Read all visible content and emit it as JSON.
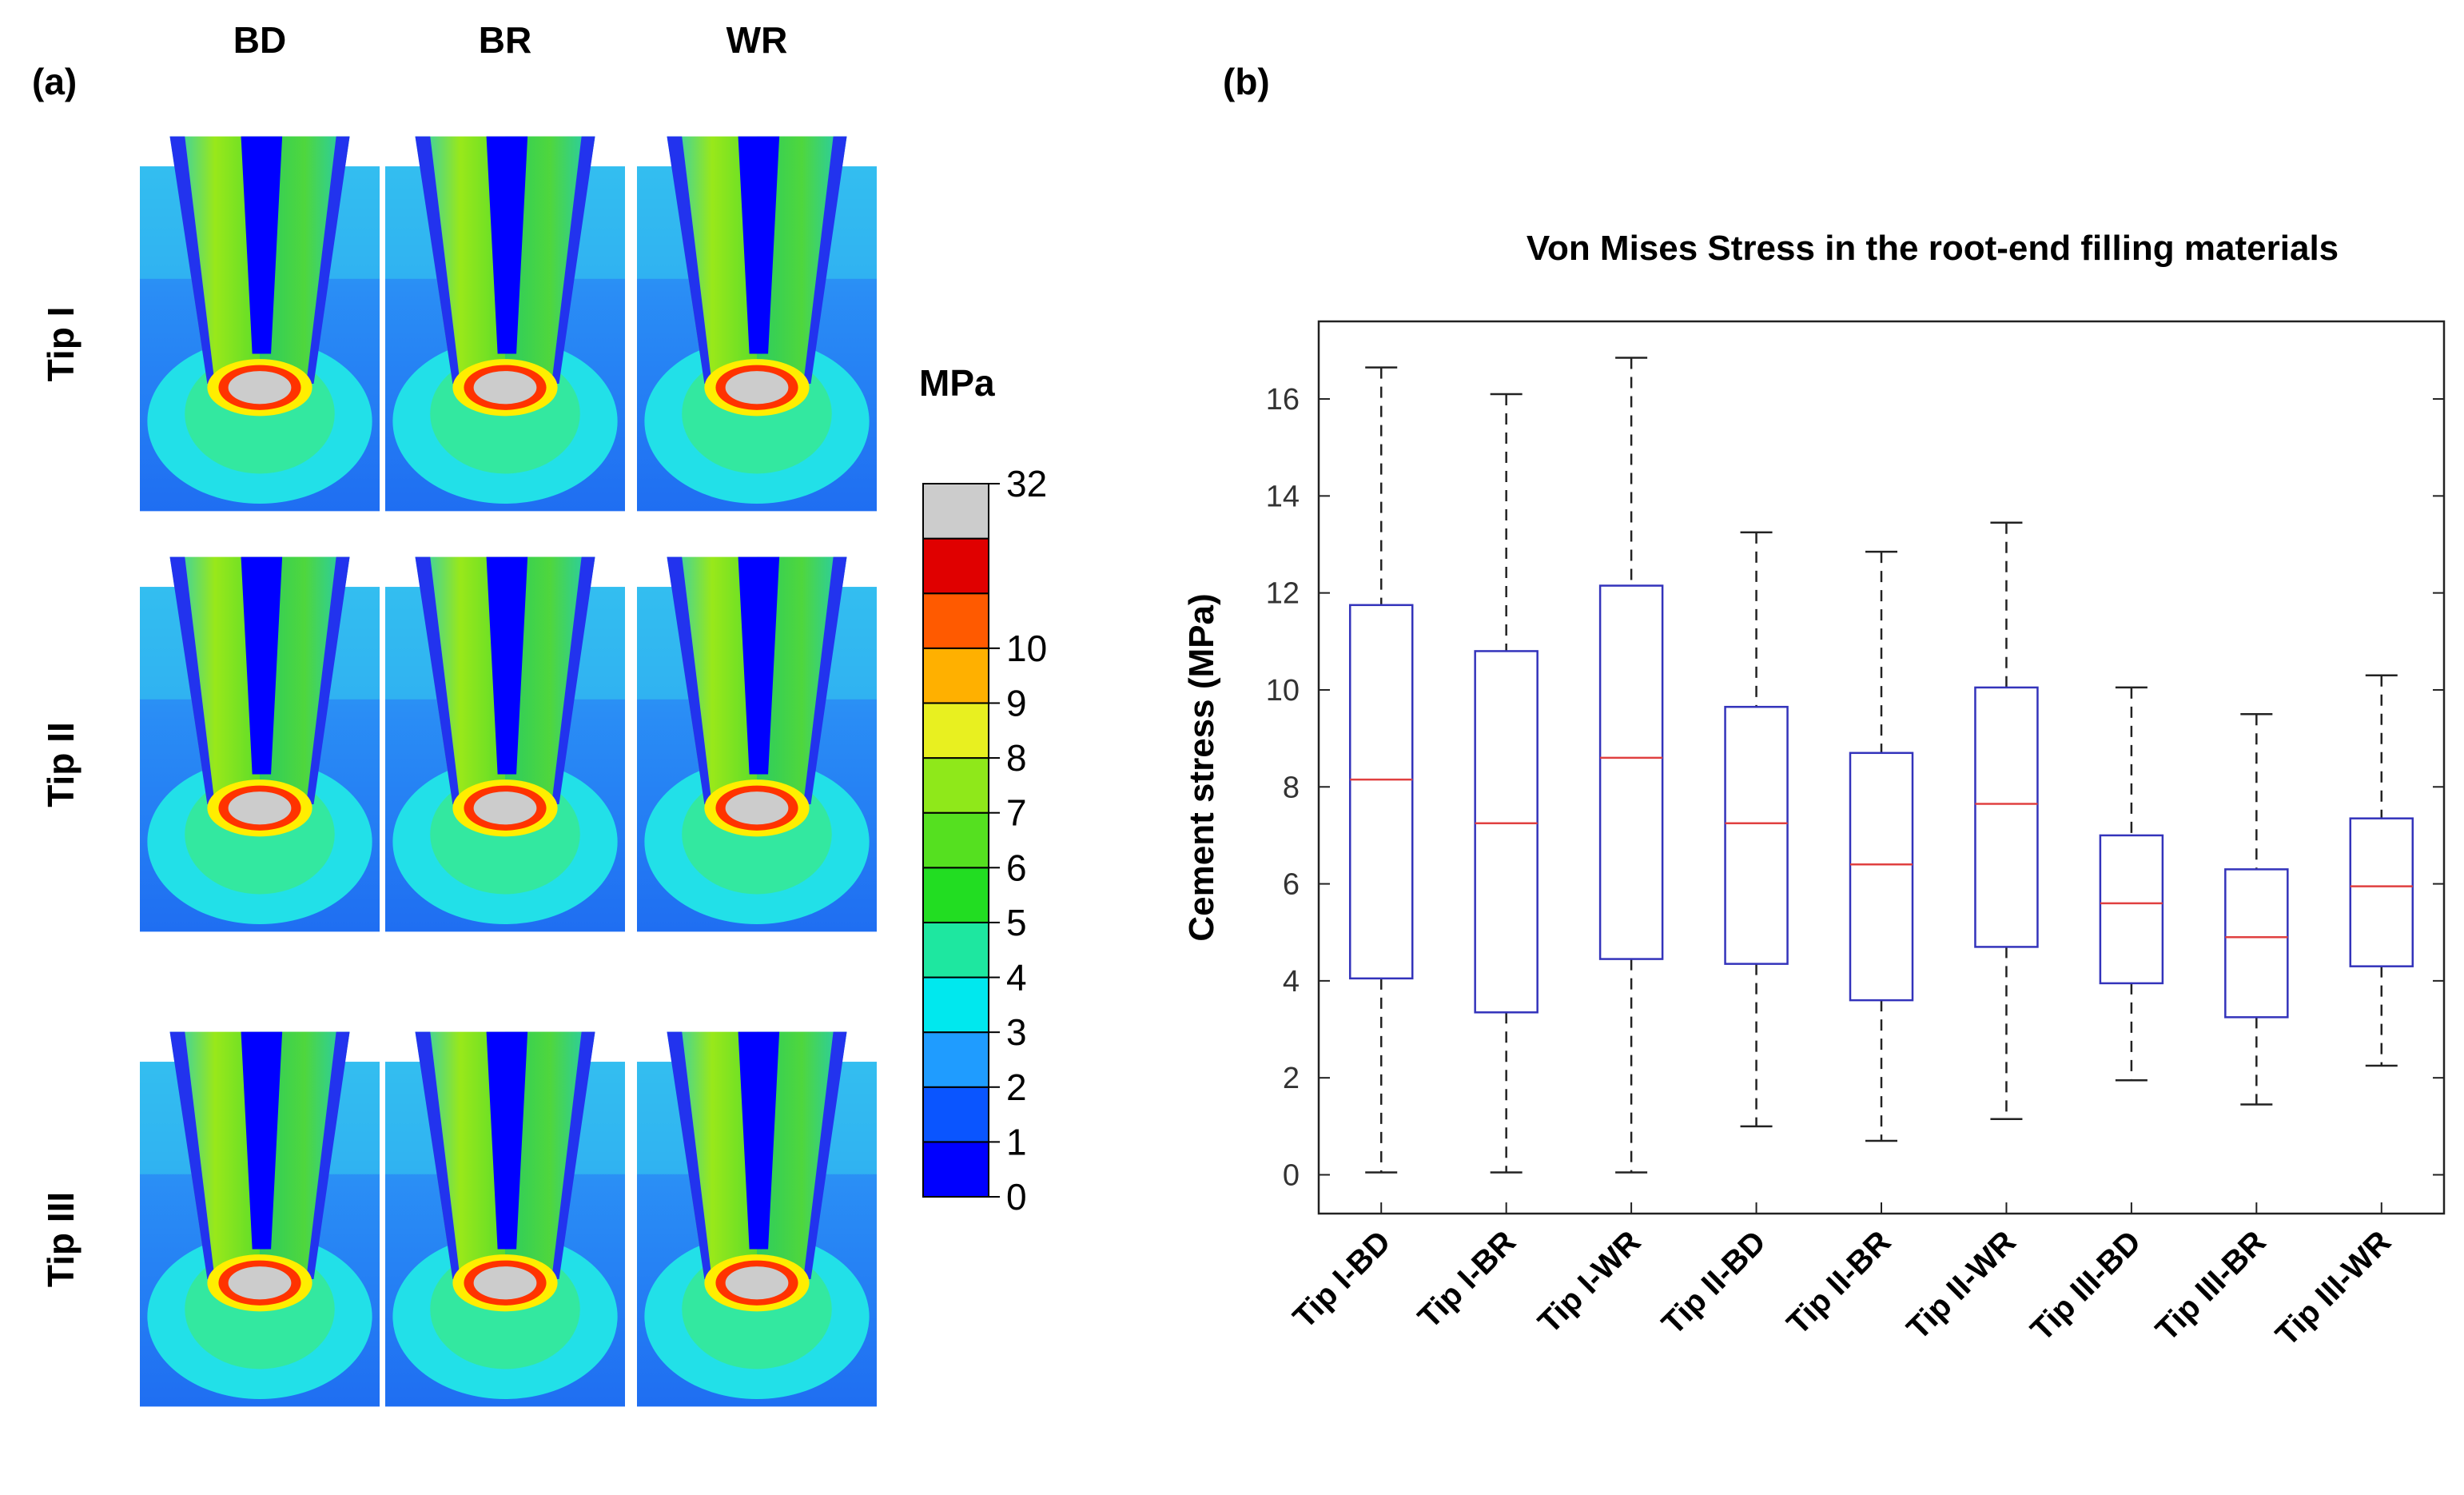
{
  "panel_a": {
    "label": "(a)",
    "columns": [
      "BD",
      "BR",
      "WR"
    ],
    "rows": [
      "Tip I",
      "Tip II",
      "Tip III"
    ],
    "colorbar": {
      "unit": "MPa",
      "levels": [
        "0",
        "1",
        "2",
        "3",
        "4",
        "5",
        "6",
        "7",
        "8",
        "9",
        "10",
        "32"
      ],
      "colors": [
        "#0000ff",
        "#0a55ff",
        "#1f9cff",
        "#00e8ee",
        "#1ee7a0",
        "#22dd22",
        "#55e020",
        "#8fe81a",
        "#e8f020",
        "#ffb000",
        "#ff5a00",
        "#e00000",
        "#cccccc"
      ]
    }
  },
  "panel_b": {
    "label": "(b)"
  },
  "chart_data": {
    "type": "box",
    "title": "Von Mises Stress in the root-end filling materials",
    "ylabel": "Cement stress (MPa)",
    "ylim": [
      -0.8,
      17.6
    ],
    "yticks": [
      "0",
      "2",
      "4",
      "6",
      "8",
      "10",
      "12",
      "14",
      "16"
    ],
    "categories": [
      "Tip I-BD",
      "Tip I-BR",
      "Tip I-WR",
      "Tip II-BD",
      "Tip II-BR",
      "Tip II-WR",
      "Tip III-BD",
      "Tip III-BR",
      "Tip III-WR"
    ],
    "boxes": [
      {
        "min": 0.05,
        "q1": 4.05,
        "median": 8.15,
        "q3": 11.75,
        "max": 16.65
      },
      {
        "min": 0.05,
        "q1": 3.35,
        "median": 7.25,
        "q3": 10.8,
        "max": 16.1
      },
      {
        "min": 0.05,
        "q1": 4.45,
        "median": 8.6,
        "q3": 12.15,
        "max": 16.85
      },
      {
        "min": 1.0,
        "q1": 4.35,
        "median": 7.25,
        "q3": 9.65,
        "max": 13.25
      },
      {
        "min": 0.7,
        "q1": 3.6,
        "median": 6.4,
        "q3": 8.7,
        "max": 12.85
      },
      {
        "min": 1.15,
        "q1": 4.7,
        "median": 7.65,
        "q3": 10.05,
        "max": 13.45
      },
      {
        "min": 1.95,
        "q1": 3.95,
        "median": 5.6,
        "q3": 7.0,
        "max": 10.05
      },
      {
        "min": 1.45,
        "q1": 3.25,
        "median": 4.9,
        "q3": 6.3,
        "max": 9.5
      },
      {
        "min": 2.25,
        "q1": 4.3,
        "median": 5.95,
        "q3": 7.35,
        "max": 10.3
      }
    ],
    "box_color": "#3333bb",
    "median_color": "#e04040",
    "whisker_color": "#222222"
  }
}
